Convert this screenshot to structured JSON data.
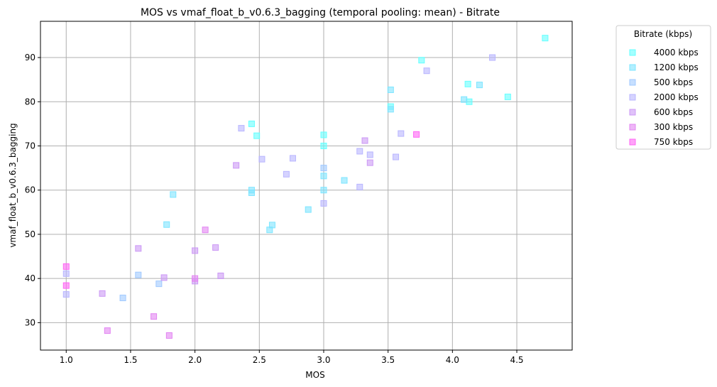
{
  "chart_data": {
    "type": "scatter",
    "title": "MOS vs vmaf_float_b_v0.6.3_bagging (temporal pooling: mean) - Bitrate",
    "xlabel": "MOS",
    "ylabel": "vmaf_float_b_v0.6.3_bagging",
    "xlim": [
      0.8,
      4.93
    ],
    "ylim": [
      23.8,
      98.2
    ],
    "xticks": [
      1.0,
      1.5,
      2.0,
      2.5,
      3.0,
      3.5,
      4.0,
      4.5
    ],
    "xtick_labels": [
      "1.0",
      "1.5",
      "2.0",
      "2.5",
      "3.0",
      "3.5",
      "4.0",
      "4.5"
    ],
    "yticks": [
      30,
      40,
      50,
      60,
      70,
      80,
      90
    ],
    "ytick_labels": [
      "30",
      "40",
      "50",
      "60",
      "70",
      "80",
      "90"
    ],
    "grid": true,
    "marker": "square",
    "legend": {
      "title": "Bitrate (kbps)",
      "placement": "outside-top-right"
    },
    "series": [
      {
        "name": "4000 kbps",
        "color": "#66ffff",
        "points": [
          [
            4.72,
            94.4
          ],
          [
            3.76,
            89.4
          ],
          [
            4.12,
            84.0
          ],
          [
            4.13,
            80.0
          ],
          [
            4.43,
            81.1
          ],
          [
            3.52,
            78.9
          ],
          [
            2.44,
            75.0
          ],
          [
            2.48,
            72.3
          ],
          [
            3.0,
            72.5
          ],
          [
            3.0,
            70.0
          ]
        ]
      },
      {
        "name": "1200 kbps",
        "color": "#7ee5ff",
        "points": [
          [
            4.09,
            80.5
          ],
          [
            4.21,
            83.8
          ],
          [
            3.52,
            82.7
          ],
          [
            3.52,
            78.3
          ],
          [
            3.16,
            62.2
          ],
          [
            3.0,
            63.2
          ],
          [
            3.0,
            60.0
          ],
          [
            2.88,
            55.6
          ],
          [
            2.6,
            52.1
          ],
          [
            2.58,
            51.0
          ],
          [
            2.44,
            60.0
          ],
          [
            2.44,
            59.4
          ],
          [
            1.83,
            59.0
          ],
          [
            1.78,
            52.2
          ]
        ]
      },
      {
        "name": "500 kbps",
        "color": "#a0c9ff",
        "points": [
          [
            3.0,
            65.0
          ],
          [
            1.56,
            40.8
          ],
          [
            1.44,
            35.6
          ],
          [
            1.72,
            38.8
          ]
        ]
      },
      {
        "name": "2000 kbps",
        "color": "#b9b6ff",
        "points": [
          [
            4.31,
            90.0
          ],
          [
            3.8,
            87.0
          ],
          [
            3.6,
            72.8
          ],
          [
            3.56,
            67.5
          ],
          [
            3.36,
            68.0
          ],
          [
            3.28,
            68.8
          ],
          [
            3.28,
            60.7
          ],
          [
            3.0,
            57.0
          ],
          [
            2.76,
            67.2
          ],
          [
            2.71,
            63.6
          ],
          [
            2.52,
            67.0
          ],
          [
            2.36,
            74.0
          ],
          [
            1.0,
            41.1
          ],
          [
            1.0,
            36.4
          ]
        ]
      },
      {
        "name": "600 kbps",
        "color": "#cc99f5",
        "points": [
          [
            3.32,
            71.2
          ],
          [
            3.36,
            66.2
          ],
          [
            2.32,
            65.6
          ],
          [
            2.16,
            47.0
          ],
          [
            2.2,
            40.6
          ],
          [
            2.0,
            46.3
          ],
          [
            2.0,
            39.4
          ],
          [
            1.56,
            46.8
          ],
          [
            1.76,
            40.2
          ],
          [
            1.28,
            36.6
          ]
        ]
      },
      {
        "name": "300 kbps",
        "color": "#e285f2",
        "points": [
          [
            2.08,
            51.0
          ],
          [
            2.0,
            40.0
          ],
          [
            1.32,
            28.2
          ],
          [
            1.68,
            31.4
          ],
          [
            1.8,
            27.1
          ]
        ]
      },
      {
        "name": "750 kbps",
        "color": "#ff66f5",
        "points": [
          [
            3.72,
            72.6
          ],
          [
            1.0,
            42.7
          ],
          [
            1.0,
            38.4
          ]
        ]
      }
    ]
  }
}
